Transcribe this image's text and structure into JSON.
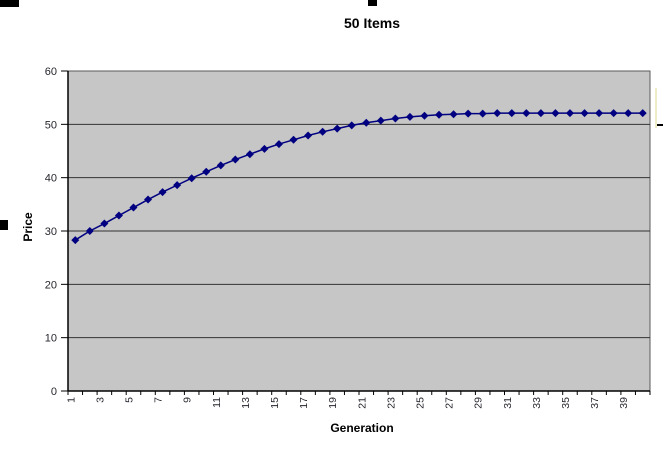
{
  "chart_data": {
    "type": "line",
    "title": "50 Items",
    "xlabel": "Generation",
    "ylabel": "Price",
    "x": [
      1,
      2,
      3,
      4,
      5,
      6,
      7,
      8,
      9,
      10,
      11,
      12,
      13,
      14,
      15,
      16,
      17,
      18,
      19,
      20,
      21,
      22,
      23,
      24,
      25,
      26,
      27,
      28,
      29,
      30,
      31,
      32,
      33,
      34,
      35,
      36,
      37,
      38,
      39,
      40
    ],
    "series": [
      {
        "name": "Price",
        "values": [
          28.3,
          30.0,
          31.4,
          32.9,
          34.4,
          35.9,
          37.3,
          38.6,
          39.9,
          41.1,
          42.3,
          43.4,
          44.4,
          45.4,
          46.3,
          47.1,
          47.9,
          48.6,
          49.2,
          49.8,
          50.3,
          50.7,
          51.1,
          51.4,
          51.6,
          51.8,
          51.9,
          52.0,
          52.0,
          52.1,
          52.1,
          52.1,
          52.1,
          52.1,
          52.1,
          52.1,
          52.1,
          52.1,
          52.1,
          52.1
        ]
      }
    ],
    "ylim": [
      0,
      60
    ],
    "ytick_interval": 10,
    "yticks": [
      0,
      10,
      20,
      30,
      40,
      50,
      60
    ],
    "xtick_labels": [
      1,
      3,
      5,
      7,
      9,
      11,
      13,
      15,
      17,
      19,
      21,
      23,
      25,
      27,
      29,
      31,
      33,
      35,
      37,
      39
    ],
    "xtick_label_rotation": -90,
    "grid": "horizontal",
    "legend_position": "right-cropped",
    "colors": {
      "series_line": "#000080",
      "marker_fill": "#000080",
      "plot_background": "#c6c6c6",
      "gridline": "#333333",
      "axis_line": "#000000",
      "tick_label": "#26262e",
      "legend_edge": "#eeeccb"
    }
  }
}
